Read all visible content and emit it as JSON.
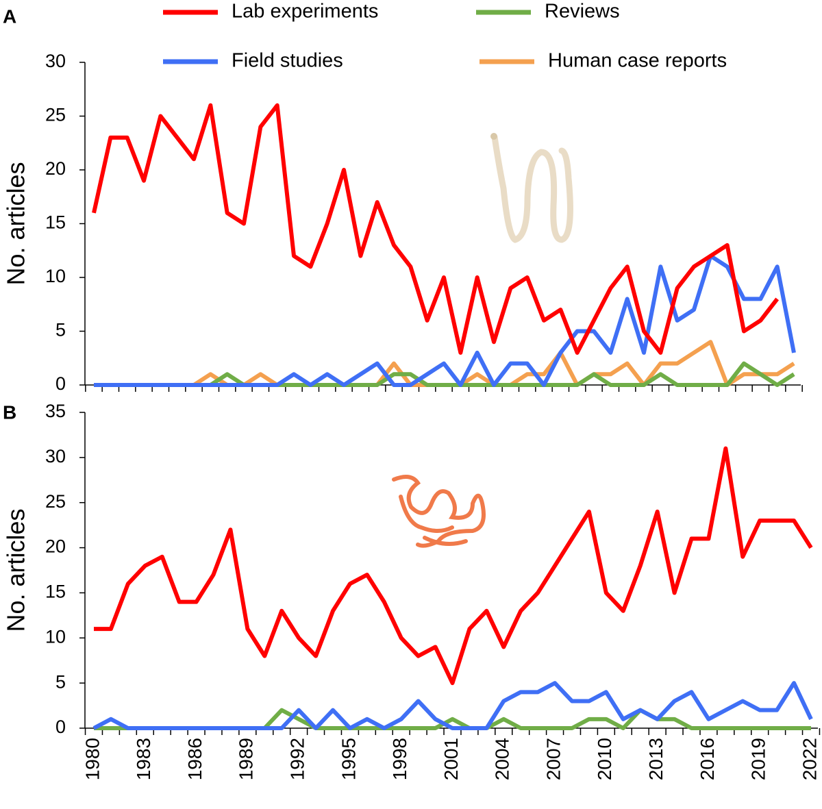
{
  "chart_data": [
    {
      "type": "line",
      "panel_label": "A",
      "ylabel": "No. articles",
      "ylim": [
        0,
        30
      ],
      "yticks": [
        0,
        5,
        10,
        15,
        20,
        25,
        30
      ],
      "series": [
        {
          "name": "Lab experiments",
          "color": "#ff0000",
          "values": [
            16,
            23,
            23,
            19,
            25,
            23,
            21,
            26,
            16,
            15,
            24,
            26,
            12,
            11,
            15,
            20,
            12,
            17,
            13,
            11,
            6,
            10,
            3,
            10,
            4,
            9,
            10,
            6,
            7,
            3,
            6,
            9,
            11,
            5,
            3,
            9,
            11,
            12,
            13,
            5,
            6,
            8,
            null
          ]
        },
        {
          "name": "Field studies",
          "color": "#3f6ff5",
          "values": [
            0,
            0,
            0,
            0,
            0,
            0,
            0,
            0,
            0,
            0,
            0,
            0,
            1,
            0,
            1,
            0,
            1,
            2,
            0,
            0,
            1,
            2,
            0,
            3,
            0,
            2,
            2,
            0,
            3,
            5,
            5,
            3,
            8,
            3,
            11,
            6,
            7,
            12,
            11,
            8,
            8,
            11,
            3
          ]
        },
        {
          "name": "Reviews",
          "color": "#70ad47",
          "values": [
            0,
            0,
            0,
            0,
            0,
            0,
            0,
            0,
            1,
            0,
            0,
            0,
            0,
            0,
            0,
            0,
            0,
            0,
            1,
            1,
            0,
            0,
            0,
            0,
            0,
            0,
            0,
            0,
            0,
            0,
            1,
            0,
            0,
            0,
            1,
            0,
            0,
            0,
            0,
            2,
            1,
            0,
            1
          ]
        },
        {
          "name": "Human case reports",
          "color": "#f4a04f",
          "values": [
            0,
            0,
            0,
            0,
            0,
            0,
            0,
            1,
            0,
            0,
            1,
            0,
            0,
            0,
            0,
            0,
            0,
            0,
            2,
            0,
            0,
            0,
            0,
            1,
            0,
            0,
            1,
            1,
            3,
            0,
            1,
            1,
            2,
            0,
            2,
            2,
            3,
            4,
            0,
            1,
            1,
            1,
            2
          ]
        }
      ]
    },
    {
      "type": "line",
      "panel_label": "B",
      "ylabel": "No. articles",
      "ylim": [
        0,
        35
      ],
      "yticks": [
        0,
        5,
        10,
        15,
        20,
        25,
        30,
        35
      ],
      "categories": [
        "1980",
        null,
        null,
        "1983",
        null,
        null,
        "1986",
        null,
        null,
        "1989",
        null,
        null,
        "1992",
        null,
        null,
        "1995",
        null,
        null,
        "1998",
        null,
        null,
        "2001",
        null,
        null,
        "2004",
        null,
        null,
        "2007",
        null,
        null,
        "2010",
        null,
        null,
        "2013",
        null,
        null,
        "2016",
        null,
        null,
        "2019",
        null,
        null,
        "2022"
      ],
      "series": [
        {
          "color": "#ff0000",
          "values": [
            11,
            11,
            16,
            18,
            19,
            14,
            14,
            17,
            22,
            11,
            8,
            13,
            10,
            8,
            13,
            16,
            17,
            14,
            10,
            8,
            9,
            5,
            11,
            13,
            9,
            13,
            15,
            18,
            21,
            24,
            15,
            13,
            18,
            24,
            15,
            21,
            21,
            31,
            19,
            23,
            23,
            23,
            20
          ]
        },
        {
          "color": "#3f6ff5",
          "values": [
            0,
            1,
            0,
            0,
            0,
            0,
            0,
            0,
            0,
            0,
            0,
            0,
            2,
            0,
            2,
            0,
            1,
            0,
            1,
            3,
            1,
            0,
            0,
            0,
            3,
            4,
            4,
            5,
            3,
            3,
            4,
            1,
            2,
            1,
            3,
            4,
            1,
            2,
            3,
            2,
            2,
            5,
            1
          ]
        },
        {
          "color": "#70ad47",
          "values": [
            0,
            0,
            0,
            0,
            0,
            0,
            0,
            0,
            0,
            0,
            0,
            2,
            1,
            0,
            0,
            0,
            0,
            0,
            0,
            0,
            0,
            1,
            0,
            0,
            1,
            0,
            0,
            0,
            0,
            1,
            1,
            0,
            2,
            1,
            1,
            0,
            0,
            0,
            0,
            0,
            0,
            0,
            0
          ]
        }
      ]
    }
  ]
}
